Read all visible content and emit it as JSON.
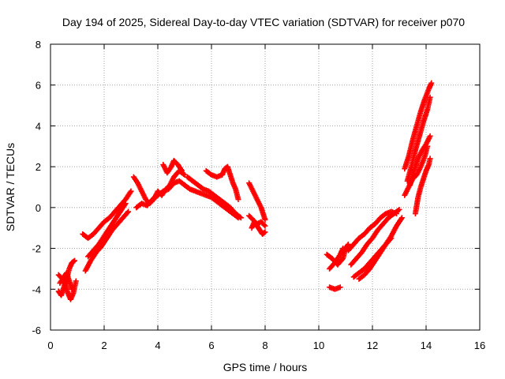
{
  "chart_data": {
    "type": "scatter",
    "title": "Day 194 of 2025, Sidereal Day-to-day VTEC variation (SDTVAR) for receiver p070",
    "xlabel": "GPS time / hours",
    "ylabel": "SDTVAR / TECUs",
    "xlim": [
      0,
      16
    ],
    "ylim": [
      -6,
      8
    ],
    "xticks": [
      "0",
      "2",
      "4",
      "6",
      "8",
      "10",
      "12",
      "14",
      "16"
    ],
    "yticks": [
      "-6",
      "-4",
      "-2",
      "0",
      "2",
      "4",
      "6",
      "8"
    ],
    "grid": true,
    "marker": "+",
    "color": "#ff0000",
    "tracks": [
      [
        [
          0.3,
          -4.1
        ],
        [
          0.4,
          -4.3
        ],
        [
          0.5,
          -3.9
        ],
        [
          0.6,
          -3.5
        ],
        [
          0.7,
          -3.0
        ],
        [
          0.8,
          -2.7
        ],
        [
          0.9,
          -2.6
        ]
      ],
      [
        [
          0.3,
          -3.3
        ],
        [
          0.45,
          -3.5
        ],
        [
          0.55,
          -3.8
        ],
        [
          0.65,
          -4.2
        ],
        [
          0.75,
          -4.5
        ],
        [
          0.85,
          -4.2
        ],
        [
          0.95,
          -3.6
        ]
      ],
      [
        [
          0.35,
          -3.7
        ],
        [
          0.5,
          -3.4
        ],
        [
          0.6,
          -3.2
        ],
        [
          0.7,
          -3.6
        ],
        [
          0.8,
          -4.0
        ]
      ],
      [
        [
          1.2,
          -1.3
        ],
        [
          1.4,
          -1.5
        ],
        [
          1.6,
          -1.3
        ],
        [
          1.8,
          -1.0
        ],
        [
          2.0,
          -0.7
        ],
        [
          2.2,
          -0.5
        ],
        [
          2.4,
          -0.2
        ],
        [
          2.6,
          0.1
        ],
        [
          2.8,
          0.4
        ],
        [
          3.0,
          0.8
        ]
      ],
      [
        [
          1.3,
          -3.1
        ],
        [
          1.5,
          -2.6
        ],
        [
          1.7,
          -2.2
        ],
        [
          1.9,
          -1.9
        ],
        [
          2.1,
          -1.5
        ],
        [
          2.3,
          -1.1
        ],
        [
          2.5,
          -0.8
        ],
        [
          2.7,
          -0.5
        ],
        [
          2.9,
          -0.2
        ]
      ],
      [
        [
          1.4,
          -2.4
        ],
        [
          1.6,
          -2.1
        ],
        [
          1.8,
          -1.8
        ],
        [
          2.0,
          -1.4
        ],
        [
          2.2,
          -1.0
        ],
        [
          2.4,
          -0.6
        ],
        [
          2.6,
          -0.2
        ],
        [
          2.8,
          0.2
        ]
      ],
      [
        [
          3.1,
          1.5
        ],
        [
          3.25,
          1.2
        ],
        [
          3.4,
          0.8
        ],
        [
          3.55,
          0.4
        ],
        [
          3.7,
          0.2
        ],
        [
          3.85,
          0.4
        ],
        [
          4.0,
          0.8
        ],
        [
          4.15,
          0.6
        ],
        [
          4.3,
          0.9
        ],
        [
          4.45,
          1.1
        ],
        [
          4.6,
          1.5
        ],
        [
          4.8,
          1.8
        ],
        [
          5.0,
          1.6
        ]
      ],
      [
        [
          3.2,
          0.0
        ],
        [
          3.4,
          0.2
        ],
        [
          3.6,
          0.1
        ],
        [
          3.8,
          0.4
        ],
        [
          4.0,
          0.6
        ],
        [
          4.2,
          0.8
        ],
        [
          4.4,
          0.9
        ],
        [
          4.6,
          1.2
        ],
        [
          4.8,
          1.3
        ],
        [
          5.0,
          1.1
        ]
      ],
      [
        [
          4.2,
          2.1
        ],
        [
          4.35,
          1.7
        ],
        [
          4.5,
          2.0
        ],
        [
          4.6,
          2.3
        ],
        [
          4.75,
          2.1
        ],
        [
          4.9,
          1.8
        ]
      ],
      [
        [
          5.0,
          1.1
        ],
        [
          5.2,
          0.9
        ],
        [
          5.4,
          0.8
        ],
        [
          5.6,
          0.7
        ],
        [
          5.8,
          0.6
        ],
        [
          6.0,
          0.5
        ],
        [
          6.2,
          0.3
        ],
        [
          6.4,
          0.1
        ],
        [
          6.6,
          -0.1
        ],
        [
          6.8,
          -0.3
        ],
        [
          7.0,
          -0.5
        ]
      ],
      [
        [
          5.1,
          1.5
        ],
        [
          5.3,
          1.3
        ],
        [
          5.5,
          1.1
        ],
        [
          5.7,
          0.9
        ],
        [
          5.9,
          0.8
        ],
        [
          6.1,
          0.6
        ],
        [
          6.3,
          0.4
        ],
        [
          6.5,
          0.2
        ],
        [
          6.7,
          0.0
        ],
        [
          6.9,
          -0.3
        ],
        [
          7.1,
          -0.5
        ]
      ],
      [
        [
          5.8,
          1.8
        ],
        [
          6.0,
          1.6
        ],
        [
          6.2,
          1.5
        ],
        [
          6.4,
          1.6
        ],
        [
          6.5,
          1.9
        ],
        [
          6.6,
          2.0
        ],
        [
          6.7,
          1.6
        ],
        [
          6.8,
          1.2
        ],
        [
          6.9,
          0.9
        ],
        [
          7.0,
          0.4
        ]
      ],
      [
        [
          7.4,
          1.2
        ],
        [
          7.55,
          0.8
        ],
        [
          7.7,
          0.4
        ],
        [
          7.85,
          0.0
        ],
        [
          8.0,
          -0.6
        ]
      ],
      [
        [
          7.5,
          -1.0
        ],
        [
          7.6,
          -0.7
        ],
        [
          7.7,
          -0.9
        ],
        [
          7.8,
          -1.1
        ],
        [
          7.9,
          -1.3
        ],
        [
          8.0,
          -1.2
        ]
      ],
      [
        [
          7.4,
          -0.4
        ],
        [
          7.55,
          -0.6
        ],
        [
          7.7,
          -0.8
        ],
        [
          7.85,
          -0.7
        ],
        [
          8.0,
          -0.9
        ]
      ],
      [
        [
          10.3,
          -2.3
        ],
        [
          10.5,
          -2.5
        ],
        [
          10.7,
          -2.8
        ],
        [
          10.9,
          -2.5
        ],
        [
          11.0,
          -2.0
        ],
        [
          11.1,
          -1.8
        ]
      ],
      [
        [
          10.4,
          -3.0
        ],
        [
          10.6,
          -2.7
        ],
        [
          10.8,
          -2.3
        ],
        [
          10.9,
          -2.0
        ]
      ],
      [
        [
          10.4,
          -3.9
        ],
        [
          10.6,
          -4.0
        ],
        [
          10.8,
          -3.9
        ]
      ],
      [
        [
          11.1,
          -2.1
        ],
        [
          11.3,
          -1.8
        ],
        [
          11.5,
          -1.5
        ],
        [
          11.7,
          -1.3
        ],
        [
          11.9,
          -1.0
        ],
        [
          12.1,
          -0.8
        ],
        [
          12.3,
          -0.5
        ],
        [
          12.5,
          -0.3
        ],
        [
          12.7,
          -0.2
        ],
        [
          12.9,
          -0.3
        ]
      ],
      [
        [
          11.2,
          -2.8
        ],
        [
          11.4,
          -2.5
        ],
        [
          11.6,
          -2.2
        ],
        [
          11.8,
          -1.8
        ],
        [
          12.0,
          -1.5
        ],
        [
          12.2,
          -1.1
        ],
        [
          12.4,
          -0.8
        ],
        [
          12.6,
          -0.5
        ],
        [
          12.8,
          -0.3
        ],
        [
          13.0,
          -0.1
        ]
      ],
      [
        [
          11.3,
          -3.4
        ],
        [
          11.5,
          -3.2
        ],
        [
          11.7,
          -3.0
        ],
        [
          11.9,
          -2.7
        ],
        [
          12.1,
          -2.4
        ],
        [
          12.3,
          -2.1
        ],
        [
          12.5,
          -1.8
        ],
        [
          12.7,
          -1.4
        ],
        [
          12.9,
          -0.9
        ],
        [
          13.1,
          -0.5
        ]
      ],
      [
        [
          11.5,
          -3.5
        ],
        [
          11.7,
          -3.3
        ],
        [
          11.9,
          -3.0
        ],
        [
          12.1,
          -2.6
        ],
        [
          12.3,
          -2.2
        ],
        [
          12.5,
          -1.8
        ],
        [
          12.7,
          -1.5
        ]
      ],
      [
        [
          13.2,
          1.9
        ],
        [
          13.35,
          2.5
        ],
        [
          13.5,
          3.3
        ],
        [
          13.65,
          4.0
        ],
        [
          13.8,
          4.7
        ],
        [
          13.95,
          5.3
        ],
        [
          14.1,
          5.8
        ],
        [
          14.2,
          6.1
        ]
      ],
      [
        [
          13.3,
          1.3
        ],
        [
          13.45,
          2.0
        ],
        [
          13.6,
          2.8
        ],
        [
          13.75,
          3.5
        ],
        [
          13.9,
          4.2
        ],
        [
          14.05,
          4.8
        ],
        [
          14.15,
          5.4
        ]
      ],
      [
        [
          13.4,
          1.1
        ],
        [
          13.55,
          1.8
        ],
        [
          13.7,
          2.4
        ],
        [
          13.85,
          2.8
        ],
        [
          14.0,
          3.1
        ],
        [
          14.15,
          3.5
        ]
      ],
      [
        [
          13.2,
          0.6
        ],
        [
          13.35,
          1.0
        ],
        [
          13.5,
          1.4
        ],
        [
          13.65,
          1.6
        ],
        [
          13.8,
          2.0
        ],
        [
          13.95,
          2.5
        ],
        [
          14.05,
          3.0
        ]
      ],
      [
        [
          13.6,
          -0.3
        ],
        [
          13.7,
          0.5
        ],
        [
          13.8,
          1.0
        ],
        [
          13.9,
          1.4
        ],
        [
          14.0,
          1.8
        ],
        [
          14.1,
          2.1
        ],
        [
          14.15,
          2.4
        ]
      ]
    ]
  }
}
